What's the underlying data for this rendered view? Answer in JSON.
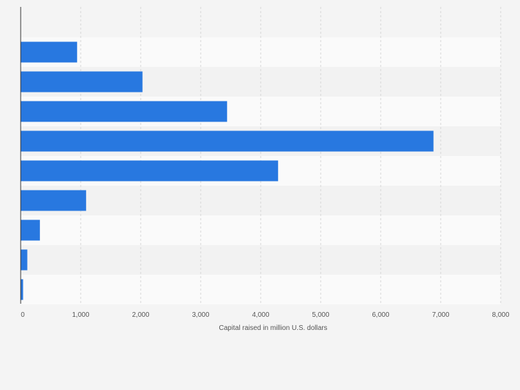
{
  "chart_data": {
    "type": "bar",
    "orientation": "horizontal",
    "categories": [
      "",
      "",
      "",
      "",
      "",
      "",
      "",
      "",
      ""
    ],
    "values": [
      940,
      2030,
      3440,
      6880,
      4290,
      1090,
      320,
      110,
      40
    ],
    "title": "",
    "xlabel": "Capital raised in million U.S. dollars",
    "ylabel": "",
    "xlim": [
      0,
      8000
    ],
    "x_ticks": [
      0,
      1000,
      2000,
      3000,
      4000,
      5000,
      6000,
      7000,
      8000
    ],
    "x_tick_labels": [
      "0",
      "1,000",
      "2,000",
      "3,000",
      "4,000",
      "5,000",
      "6,000",
      "7,000",
      "8,000"
    ],
    "grid": "vertical dashed",
    "legend": "none",
    "colors": {
      "bar": "#2878e0",
      "band_light": "#fafafa",
      "band_dark": "#f2f2f2",
      "grid": "#d6d6d6",
      "axis": "#333333",
      "tick_text": "#555555"
    }
  }
}
